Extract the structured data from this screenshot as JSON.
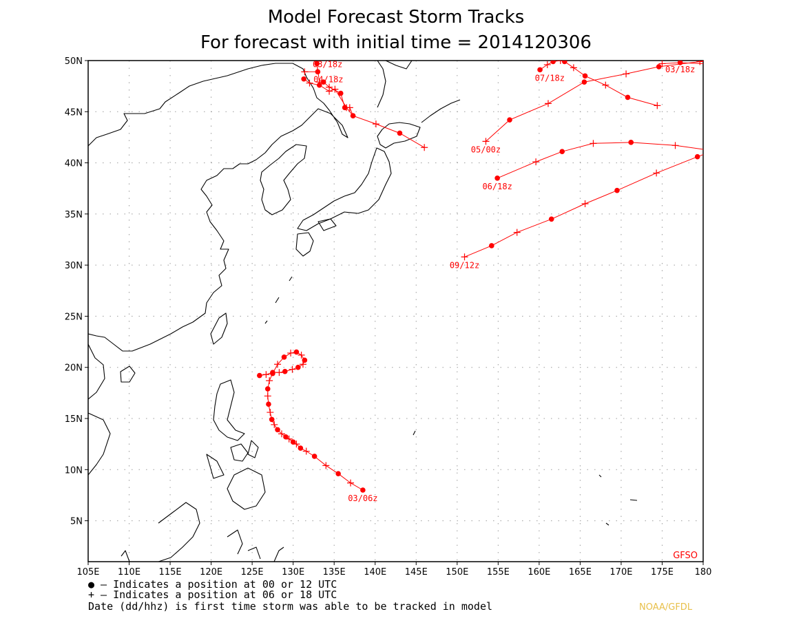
{
  "title": {
    "line1": "Model Forecast Storm Tracks",
    "line2": "For forecast with initial time = 2014120306"
  },
  "map": {
    "lon_range": [
      105,
      180
    ],
    "lat_range": [
      1,
      50
    ],
    "lon_ticks": [
      {
        "value": 105,
        "label": "105E"
      },
      {
        "value": 110,
        "label": "110E"
      },
      {
        "value": 115,
        "label": "115E"
      },
      {
        "value": 120,
        "label": "120E"
      },
      {
        "value": 125,
        "label": "125E"
      },
      {
        "value": 130,
        "label": "130E"
      },
      {
        "value": 135,
        "label": "135E"
      },
      {
        "value": 140,
        "label": "140E"
      },
      {
        "value": 145,
        "label": "145E"
      },
      {
        "value": 150,
        "label": "150E"
      },
      {
        "value": 155,
        "label": "155E"
      },
      {
        "value": 160,
        "label": "160E"
      },
      {
        "value": 165,
        "label": "165E"
      },
      {
        "value": 170,
        "label": "170E"
      },
      {
        "value": 175,
        "label": "175E"
      },
      {
        "value": 180,
        "label": "180"
      }
    ],
    "lat_ticks": [
      {
        "value": 5,
        "label": "5N"
      },
      {
        "value": 10,
        "label": "10N"
      },
      {
        "value": 15,
        "label": "15N"
      },
      {
        "value": 20,
        "label": "20N"
      },
      {
        "value": 25,
        "label": "25N"
      },
      {
        "value": 30,
        "label": "30N"
      },
      {
        "value": 35,
        "label": "35N"
      },
      {
        "value": 40,
        "label": "40N"
      },
      {
        "value": 45,
        "label": "45N"
      },
      {
        "value": 50,
        "label": "50N"
      }
    ],
    "grid": true,
    "track_color": "#ff0000",
    "model_label": "GFSO"
  },
  "tracks": [
    {
      "label": "03/06z",
      "points": [
        {
          "lon": 138.5,
          "lat": 8.0,
          "marker": "dot"
        },
        {
          "lon": 137.0,
          "lat": 8.7,
          "marker": "plus"
        },
        {
          "lon": 135.5,
          "lat": 9.6,
          "marker": "dot"
        },
        {
          "lon": 134.0,
          "lat": 10.4,
          "marker": "plus"
        },
        {
          "lon": 132.6,
          "lat": 11.3,
          "marker": "dot"
        },
        {
          "lon": 131.6,
          "lat": 11.8,
          "marker": "plus"
        },
        {
          "lon": 130.9,
          "lat": 12.1,
          "marker": "dot"
        },
        {
          "lon": 130.4,
          "lat": 12.5,
          "marker": "plus"
        },
        {
          "lon": 130.0,
          "lat": 12.7,
          "marker": "dot"
        },
        {
          "lon": 129.5,
          "lat": 13.0,
          "marker": "plus"
        },
        {
          "lon": 129.1,
          "lat": 13.2,
          "marker": "dot"
        },
        {
          "lon": 128.6,
          "lat": 13.5,
          "marker": "plus"
        },
        {
          "lon": 128.1,
          "lat": 13.9,
          "marker": "dot"
        },
        {
          "lon": 127.7,
          "lat": 14.4,
          "marker": "plus"
        },
        {
          "lon": 127.4,
          "lat": 14.9,
          "marker": "dot"
        },
        {
          "lon": 127.2,
          "lat": 15.6,
          "marker": "plus"
        },
        {
          "lon": 127.0,
          "lat": 16.4,
          "marker": "dot"
        },
        {
          "lon": 126.9,
          "lat": 17.2,
          "marker": "plus"
        },
        {
          "lon": 126.9,
          "lat": 17.9,
          "marker": "dot"
        },
        {
          "lon": 127.1,
          "lat": 18.7,
          "marker": "plus"
        },
        {
          "lon": 127.5,
          "lat": 19.4,
          "marker": "dot"
        },
        {
          "lon": 128.1,
          "lat": 20.3,
          "marker": "plus"
        },
        {
          "lon": 128.9,
          "lat": 21.0,
          "marker": "dot"
        },
        {
          "lon": 129.7,
          "lat": 21.4,
          "marker": "plus"
        },
        {
          "lon": 130.4,
          "lat": 21.5,
          "marker": "dot"
        },
        {
          "lon": 131.0,
          "lat": 21.2,
          "marker": "plus"
        },
        {
          "lon": 131.4,
          "lat": 20.7,
          "marker": "dot"
        },
        {
          "lon": 131.2,
          "lat": 20.3,
          "marker": "plus"
        },
        {
          "lon": 130.6,
          "lat": 20.0,
          "marker": "dot"
        },
        {
          "lon": 129.9,
          "lat": 19.8,
          "marker": "plus"
        },
        {
          "lon": 129.0,
          "lat": 19.6,
          "marker": "dot"
        },
        {
          "lon": 128.3,
          "lat": 19.5,
          "marker": "plus"
        },
        {
          "lon": 127.5,
          "lat": 19.5,
          "marker": "dot"
        },
        {
          "lon": 126.7,
          "lat": 19.3,
          "marker": "plus"
        },
        {
          "lon": 125.9,
          "lat": 19.2,
          "marker": "dot"
        }
      ]
    },
    {
      "label": "03/18z",
      "points": [
        {
          "lon": 131.4,
          "lat": 48.9,
          "marker": "plus"
        },
        {
          "lon": 133.0,
          "lat": 48.9,
          "marker": "dot"
        },
        {
          "lon": 132.9,
          "lat": 49.7,
          "marker": "dot"
        },
        {
          "lon": 133.2,
          "lat": 47.9,
          "marker": "plus"
        },
        {
          "lon": 133.7,
          "lat": 47.9,
          "marker": "dot"
        },
        {
          "lon": 134.4,
          "lat": 47.4,
          "marker": "plus"
        },
        {
          "lon": 135.8,
          "lat": 46.8,
          "marker": "dot"
        },
        {
          "lon": 136.3,
          "lat": 45.4,
          "marker": "dot"
        },
        {
          "lon": 136.9,
          "lat": 45.4,
          "marker": "plus"
        },
        {
          "lon": 137.3,
          "lat": 44.6,
          "marker": "dot"
        }
      ]
    },
    {
      "label": "04/18z",
      "points": [
        {
          "lon": 131.3,
          "lat": 48.2,
          "marker": "dot"
        },
        {
          "lon": 132.0,
          "lat": 47.8,
          "marker": "plus"
        },
        {
          "lon": 133.2,
          "lat": 47.6,
          "marker": "dot"
        },
        {
          "lon": 134.4,
          "lat": 47.0,
          "marker": "plus"
        },
        {
          "lon": 135.1,
          "lat": 47.2,
          "marker": "plus"
        },
        {
          "lon": 136.5,
          "lat": 45.4,
          "marker": "plus"
        },
        {
          "lon": 137.3,
          "lat": 44.6,
          "marker": "dot"
        },
        {
          "lon": 140.1,
          "lat": 43.8,
          "marker": "plus"
        },
        {
          "lon": 143.0,
          "lat": 42.9,
          "marker": "dot"
        },
        {
          "lon": 146.0,
          "lat": 41.5,
          "marker": "plus"
        }
      ]
    },
    {
      "label": "05/00z",
      "points": [
        {
          "lon": 153.5,
          "lat": 42.1,
          "marker": "plus"
        },
        {
          "lon": 156.4,
          "lat": 44.2,
          "marker": "dot"
        },
        {
          "lon": 161.1,
          "lat": 45.8,
          "marker": "plus"
        },
        {
          "lon": 165.5,
          "lat": 47.9,
          "marker": "dot"
        },
        {
          "lon": 170.6,
          "lat": 48.7,
          "marker": "plus"
        },
        {
          "lon": 174.6,
          "lat": 49.4,
          "marker": "dot"
        },
        {
          "lon": 179.6,
          "lat": 49.9,
          "marker": "plus"
        },
        {
          "lon": 182.8,
          "lat": 50.7,
          "marker": "dot"
        }
      ]
    },
    {
      "label": "07/18z",
      "points": [
        {
          "lon": 160.1,
          "lat": 49.1,
          "marker": "dot"
        },
        {
          "lon": 161.0,
          "lat": 49.6,
          "marker": "plus"
        },
        {
          "lon": 161.7,
          "lat": 49.9,
          "marker": "dot"
        },
        {
          "lon": 162.6,
          "lat": 50.0,
          "marker": "plus"
        },
        {
          "lon": 163.1,
          "lat": 49.9,
          "marker": "dot"
        },
        {
          "lon": 164.2,
          "lat": 49.3,
          "marker": "plus"
        },
        {
          "lon": 165.6,
          "lat": 48.5,
          "marker": "dot"
        },
        {
          "lon": 168.1,
          "lat": 47.6,
          "marker": "plus"
        },
        {
          "lon": 170.8,
          "lat": 46.4,
          "marker": "dot"
        },
        {
          "lon": 174.4,
          "lat": 45.6,
          "marker": "plus"
        }
      ]
    },
    {
      "label": "03/18z",
      "points": [
        {
          "lon": 182.2,
          "lat": 49.6,
          "marker": "dot"
        },
        {
          "lon": 177.2,
          "lat": 49.8,
          "marker": "dot"
        },
        {
          "lon": 175.0,
          "lat": 49.7,
          "marker": "plus"
        }
      ]
    },
    {
      "label": "06/18z",
      "points": [
        {
          "lon": 154.9,
          "lat": 38.5,
          "marker": "dot"
        },
        {
          "lon": 159.6,
          "lat": 40.1,
          "marker": "plus"
        },
        {
          "lon": 162.8,
          "lat": 41.1,
          "marker": "dot"
        },
        {
          "lon": 166.6,
          "lat": 41.9,
          "marker": "plus"
        },
        {
          "lon": 171.2,
          "lat": 42.0,
          "marker": "dot"
        },
        {
          "lon": 176.6,
          "lat": 41.7,
          "marker": "plus"
        },
        {
          "lon": 182.0,
          "lat": 41.1,
          "marker": "dot"
        }
      ]
    },
    {
      "label": "09/12z",
      "points": [
        {
          "lon": 150.9,
          "lat": 30.8,
          "marker": "plus"
        },
        {
          "lon": 154.2,
          "lat": 31.9,
          "marker": "dot"
        },
        {
          "lon": 157.3,
          "lat": 33.2,
          "marker": "plus"
        },
        {
          "lon": 161.5,
          "lat": 34.5,
          "marker": "dot"
        },
        {
          "lon": 165.6,
          "lat": 36.0,
          "marker": "plus"
        },
        {
          "lon": 169.5,
          "lat": 37.3,
          "marker": "dot"
        },
        {
          "lon": 174.3,
          "lat": 39.0,
          "marker": "plus"
        },
        {
          "lon": 179.3,
          "lat": 40.6,
          "marker": "dot"
        },
        {
          "lon": 184.0,
          "lat": 42.0,
          "marker": "dot"
        }
      ]
    }
  ],
  "legend": {
    "line1": "● — Indicates a position at 00 or 12 UTC",
    "line2": "+ — Indicates a position at 06 or 18 UTC",
    "line3": "Date (dd/hhz) is first time storm was able to be tracked in model"
  },
  "credit": {
    "text": "NOAA/GFDL",
    "color": "#e8c04a"
  }
}
